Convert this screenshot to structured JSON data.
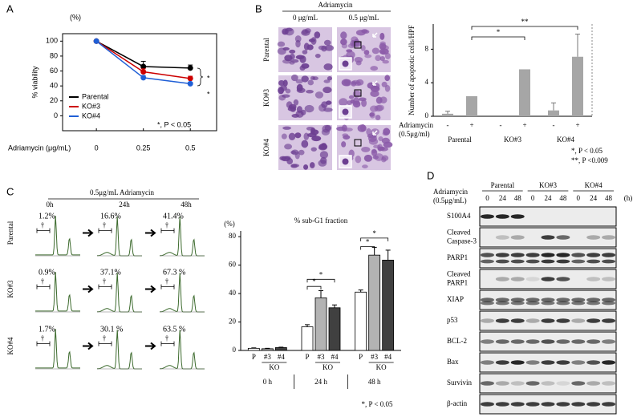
{
  "panel_labels": [
    "A",
    "B",
    "C",
    "D"
  ],
  "chart_data": [
    {
      "type": "line",
      "ylabel": "% viability",
      "yunit": "(%)",
      "xlabel": "Adriamycin (μg/mL)",
      "x": [
        0,
        0.25,
        0.5
      ],
      "xlim": [
        -0.18,
        0.64
      ],
      "xticks": [
        0,
        0.25,
        0.5
      ],
      "ylim": [
        -20,
        110
      ],
      "yticks": [
        0,
        20,
        40,
        60,
        80,
        100
      ],
      "series": [
        {
          "name": "Parental",
          "color": "#000000",
          "values": [
            100,
            66,
            64
          ],
          "errors": [
            0,
            7,
            4
          ]
        },
        {
          "name": "KO#3",
          "color": "#cc0000",
          "values": [
            100,
            59,
            50
          ],
          "errors": [
            0,
            4,
            3
          ]
        },
        {
          "name": "KO#4",
          "color": "#1f5fd6",
          "values": [
            100,
            51,
            43
          ],
          "errors": [
            0,
            3,
            2
          ]
        }
      ],
      "annotations": [
        "*",
        "*",
        "*, P < 0.05"
      ]
    },
    {
      "type": "bar",
      "ylabel": "Number of apoptotic cells/HPF",
      "categories": [
        "-",
        "+",
        "-",
        "+",
        "-",
        "+"
      ],
      "groups": [
        "Parental",
        "KO#3",
        "KO#4"
      ],
      "row_label": [
        "Adriamycin",
        "(0.5μg/ml)"
      ],
      "values": [
        0.3,
        2.4,
        0,
        5.6,
        0.7,
        7.1
      ],
      "errors": [
        0.3,
        0,
        0,
        0,
        0.9,
        2.7
      ],
      "color": "#a6a6a6",
      "ylim": [
        0,
        11
      ],
      "yticks": [
        0,
        4,
        8
      ],
      "annotations": [
        "*",
        "**"
      ],
      "notes": [
        "*, P < 0.05",
        "**, P <0.009"
      ]
    },
    {
      "type": "bar",
      "title": "% sub-G1 fraction",
      "yunit": "(%)",
      "categories": [
        "0 h",
        "24 h",
        "48 h"
      ],
      "group_label": "KO",
      "series": [
        {
          "name": "P",
          "color": "#ffffff",
          "values": [
            1.5,
            16.6,
            41
          ],
          "errors": [
            0.3,
            1.5,
            1.5
          ]
        },
        {
          "name": "#3",
          "color": "#b3b3b3",
          "values": [
            1.2,
            37,
            67
          ],
          "errors": [
            0.3,
            5,
            5.5
          ]
        },
        {
          "name": "#4",
          "color": "#404040",
          "values": [
            2,
            30,
            63.5
          ],
          "errors": [
            0.3,
            2,
            7
          ]
        }
      ],
      "ylim": [
        0,
        84
      ],
      "yticks": [
        0,
        20,
        40,
        60,
        80
      ],
      "annotations": [
        "*",
        "*",
        "*",
        "*"
      ],
      "note": "*, P < 0.05"
    }
  ],
  "micrographs": {
    "header": "Adriamycin",
    "columns": [
      "0 μg/mL",
      "0.5 μg/mL"
    ],
    "rows": [
      "Parental",
      "KO#3",
      "KO#4"
    ]
  },
  "cell_cycle": {
    "header": "0.5μg/mL  Adriamycin",
    "columns": [
      "0h",
      "24h",
      "48h"
    ],
    "rows": [
      "Parental",
      "KO#3",
      "KO#4"
    ],
    "percentages": [
      [
        "1.2%",
        "16.6%",
        "41.4%"
      ],
      [
        "0.9%",
        "37.1%",
        "67.3 %"
      ],
      [
        "1.7%",
        "30.1 %",
        "63.5 %"
      ]
    ],
    "marker": "†"
  },
  "western_blot": {
    "treatment": [
      "Adriamycin",
      "(0.5μg/mL)"
    ],
    "groups": [
      "Parental",
      "KO#3",
      "KO#4"
    ],
    "lanes": [
      "0",
      "24",
      "48"
    ],
    "unit": "(h)",
    "proteins": [
      [
        "S100A4"
      ],
      [
        "Cleaved",
        "Caspase-3"
      ],
      [
        "PARP1"
      ],
      [
        "Cleaved",
        "PARP1"
      ],
      [
        "XIAP"
      ],
      [
        "p53"
      ],
      [
        "BCL-2"
      ],
      [
        "Bax"
      ],
      [
        "Survivin"
      ],
      [
        "β-actin"
      ]
    ]
  }
}
